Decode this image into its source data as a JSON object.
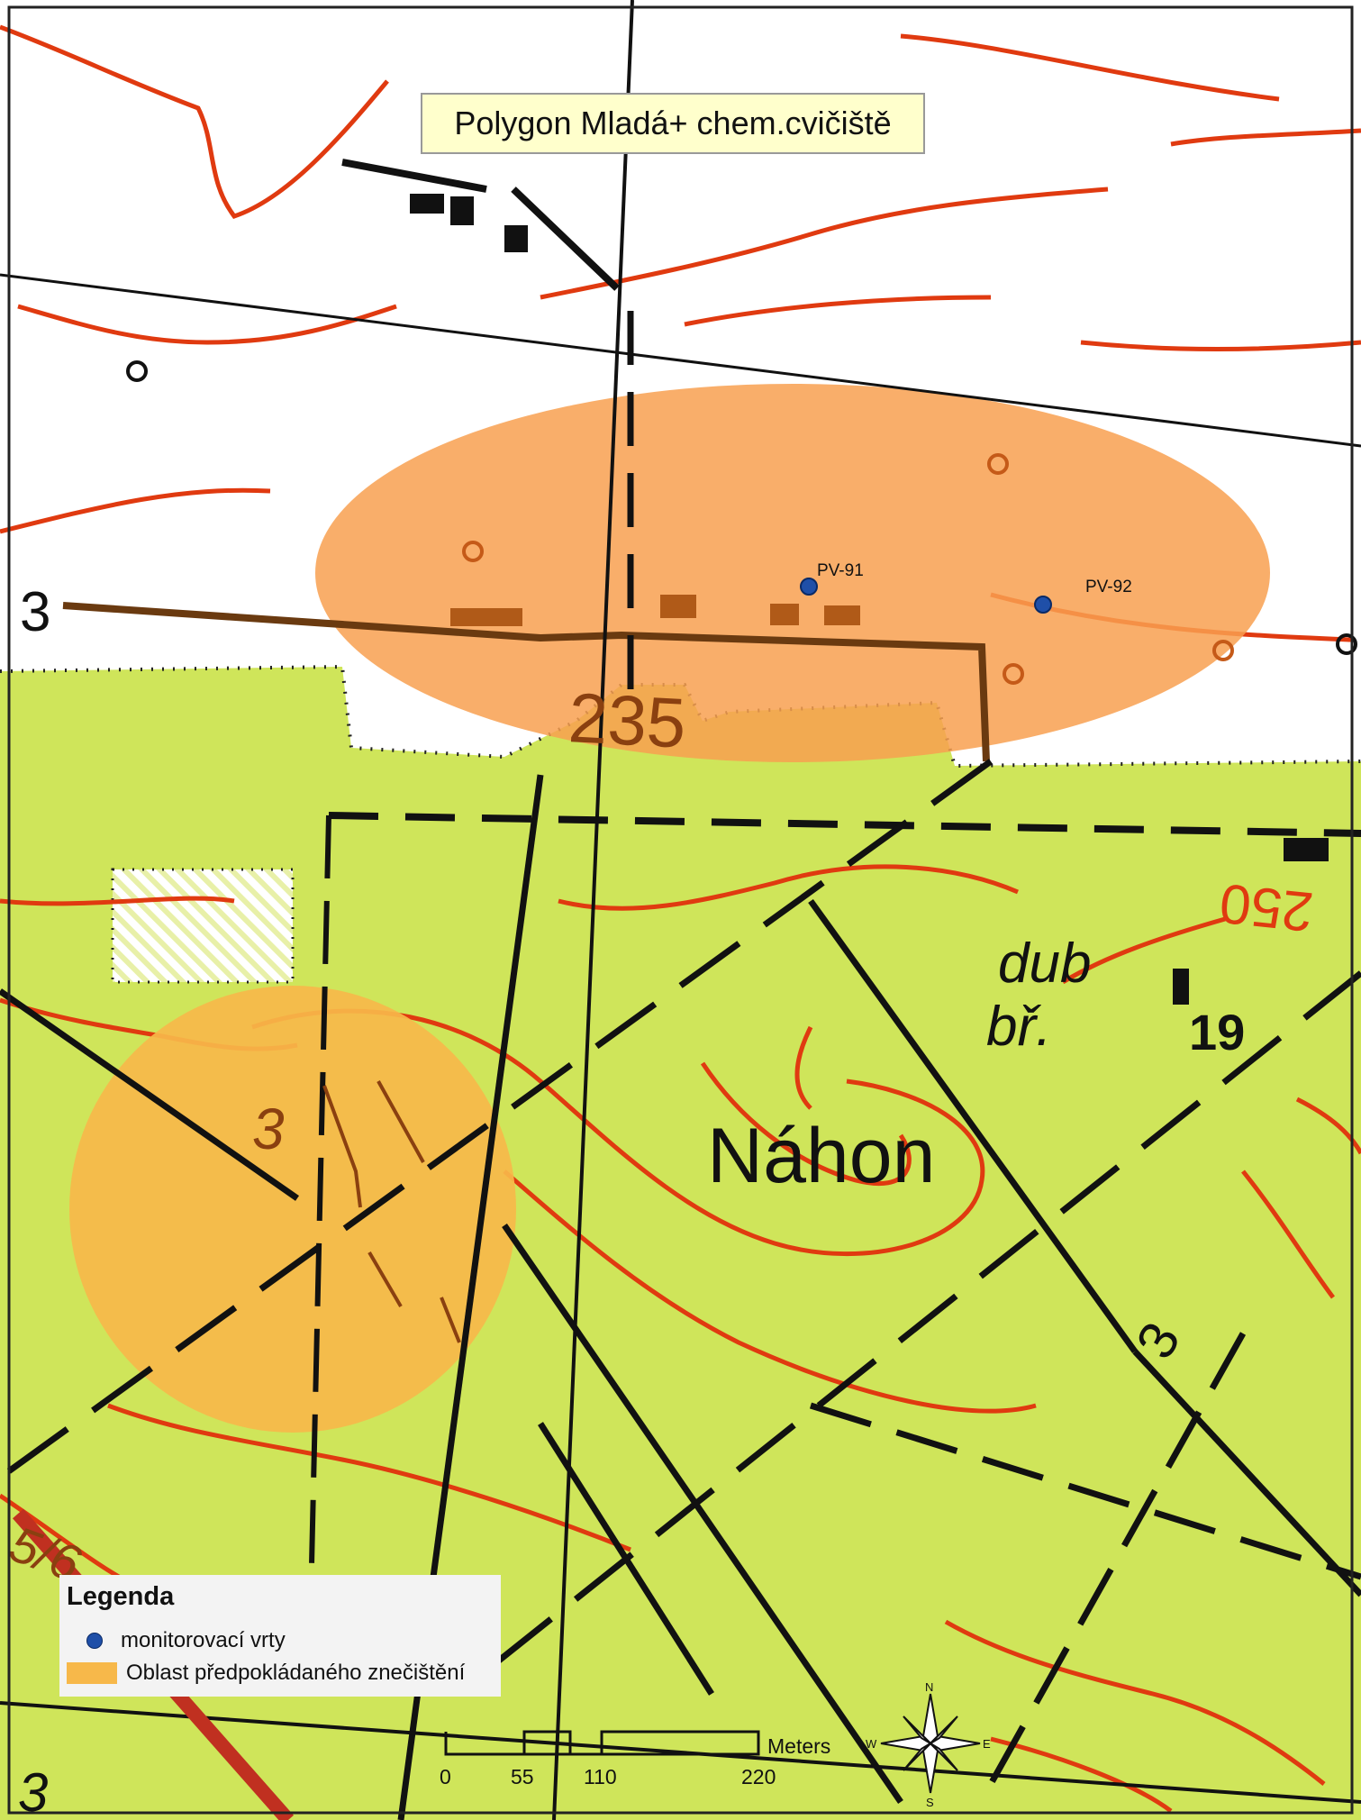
{
  "map": {
    "title": "Polygon Mladá+ chem.cvičiště",
    "background_colors": {
      "forest": "#cfe55a",
      "open": "#ffffff",
      "contour": "#e03a10",
      "pollution_area": "#f8a050"
    },
    "labels": {
      "elevation_250": "250",
      "elevation_235": "235",
      "n_3_left": "3",
      "n_3_center": "3",
      "n_3_right": "3",
      "nahon": "Náhon",
      "dub": "dub",
      "br": "bř.",
      "num_19": "19",
      "n_5_6": "5/6",
      "n_3_bottom": "3"
    },
    "wells": [
      {
        "id": "PV-91"
      },
      {
        "id": "PV-92"
      }
    ]
  },
  "legend": {
    "title": "Legenda",
    "items": [
      {
        "label": "monitorovací vrty",
        "symbol": "blue-circle",
        "color": "#1f4fa8"
      },
      {
        "label": "Oblast předpokládaného znečištění",
        "symbol": "orange-rectangle",
        "color": "#f7b84a"
      }
    ]
  },
  "scale_bar": {
    "unit": "Meters",
    "ticks": [
      "0",
      "55",
      "110",
      "220"
    ]
  },
  "compass": {
    "n": "N",
    "s": "S",
    "e": "E",
    "w": "W"
  }
}
